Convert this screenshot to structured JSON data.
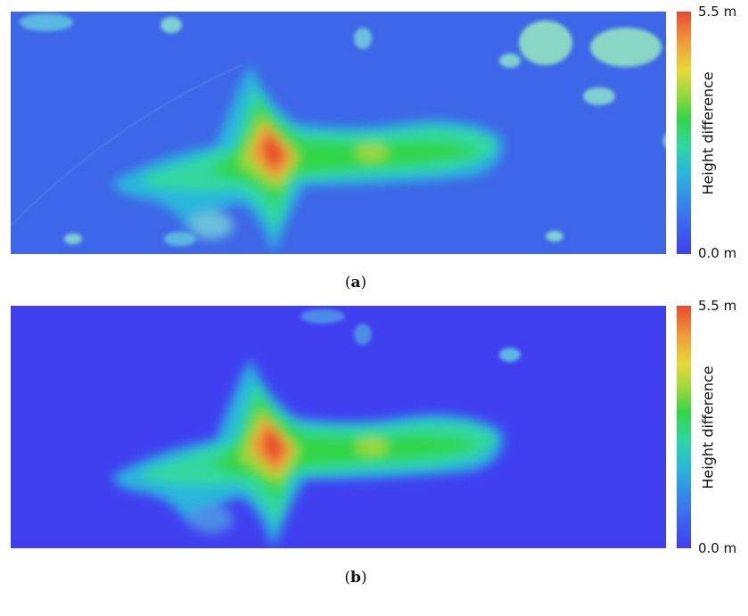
{
  "figure": {
    "panels": [
      {
        "caption_open": "(",
        "caption_letter": "a",
        "caption_close": ")",
        "colorbar": {
          "max_label": "5.5 m",
          "min_label": "0.0 m",
          "title": "Height difference"
        }
      },
      {
        "caption_open": "(",
        "caption_letter": "b",
        "caption_close": ")",
        "colorbar": {
          "max_label": "5.5 m",
          "min_label": "0.0 m",
          "title": "Height difference"
        }
      }
    ],
    "colors": {
      "low": "#3f3ff0",
      "mid": "#33d646",
      "high": "#e8482f"
    }
  }
}
